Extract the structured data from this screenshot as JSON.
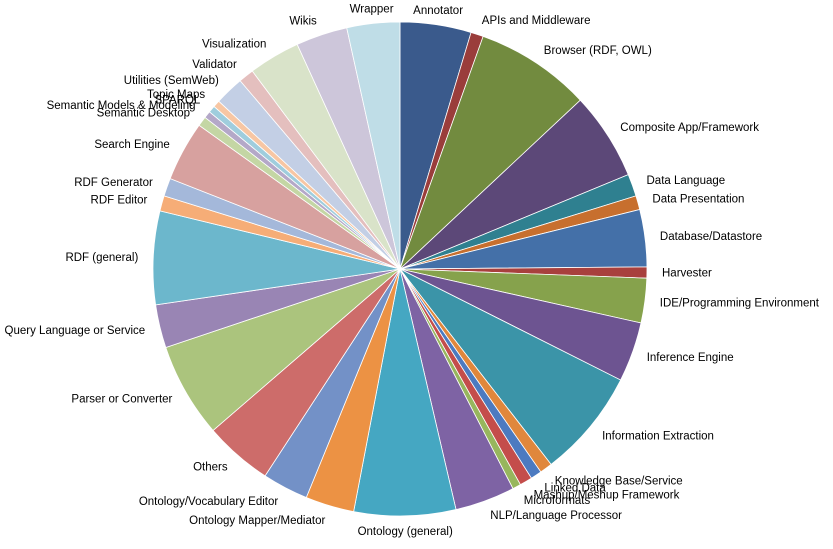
{
  "chart_data": {
    "type": "pie",
    "title": "",
    "slices": [
      {
        "label": "Annotator",
        "value": 5.1,
        "color": "#3a5a8c"
      },
      {
        "label": "APIs and Middleware",
        "value": 0.9,
        "color": "#9a3d3b"
      },
      {
        "label": "Browser (RDF, OWL)",
        "value": 8.3,
        "color": "#728b3f"
      },
      {
        "label": "Composite App/Framework",
        "value": 6.3,
        "color": "#5c4878"
      },
      {
        "label": "Data Language",
        "value": 1.6,
        "color": "#2f8090"
      },
      {
        "label": "Data Presentation",
        "value": 1.0,
        "color": "#c76f2e"
      },
      {
        "label": "Database/Datastore",
        "value": 4.1,
        "color": "#4470a8"
      },
      {
        "label": "Harvester",
        "value": 0.8,
        "color": "#a8403d"
      },
      {
        "label": "IDE/Programming Environment",
        "value": 3.2,
        "color": "#86a24c"
      },
      {
        "label": "Inference Engine",
        "value": 4.3,
        "color": "#6d5491"
      },
      {
        "label": "Information Extraction",
        "value": 7.8,
        "color": "#3b94a8"
      },
      {
        "label": "Knowledge Base/Service",
        "value": 0.9,
        "color": "#e0873c"
      },
      {
        "label": "Linked Data",
        "value": 0.8,
        "color": "#4c7ac0"
      },
      {
        "label": "Mashup/Meshup Framework",
        "value": 0.9,
        "color": "#c44d4b"
      },
      {
        "label": "Microformats",
        "value": 0.6,
        "color": "#97b65d"
      },
      {
        "label": "NLP/Language Processor",
        "value": 4.3,
        "color": "#7e63a4"
      },
      {
        "label": "Ontology (general)",
        "value": 7.3,
        "color": "#45a7c2"
      },
      {
        "label": "Ontology Mapper/Mediator",
        "value": 3.5,
        "color": "#ec9244"
      },
      {
        "label": "Ontology/Vocabulary Editor",
        "value": 3.3,
        "color": "#7391c7"
      },
      {
        "label": "Others",
        "value": 4.9,
        "color": "#cd6c6a"
      },
      {
        "label": "Parser or Converter",
        "value": 6.8,
        "color": "#abc47d"
      },
      {
        "label": "Query Language or Service",
        "value": 3.1,
        "color": "#9985b4"
      },
      {
        "label": "RDF (general)",
        "value": 6.7,
        "color": "#6cb7cc"
      },
      {
        "label": "RDF Editor",
        "value": 1.1,
        "color": "#f6ad77"
      },
      {
        "label": "RDF Generator",
        "value": 1.3,
        "color": "#a4b8da"
      },
      {
        "label": "Search Engine",
        "value": 4.3,
        "color": "#d7a19f"
      },
      {
        "label": "Semantic Desktop",
        "value": 0.7,
        "color": "#c4d6a4"
      },
      {
        "label": "Semantic Models & Modeling",
        "value": 0.5,
        "color": "#b4a8c8"
      },
      {
        "label": "SPARQL",
        "value": 0.5,
        "color": "#9fcddd"
      },
      {
        "label": "Topic Maps",
        "value": 0.5,
        "color": "#f7c6a3"
      },
      {
        "label": "Utilities (SemWeb)",
        "value": 2.1,
        "color": "#c3cfe5"
      },
      {
        "label": "Validator",
        "value": 1.1,
        "color": "#e4bfbe"
      },
      {
        "label": "Visualization",
        "value": 3.7,
        "color": "#d9e3c9"
      },
      {
        "label": "Wikis",
        "value": 3.7,
        "color": "#cdc6da"
      },
      {
        "label": "Wrapper",
        "value": 3.8,
        "color": "#bfdde7"
      }
    ],
    "legend": "none",
    "data_labels": "category names outside slices"
  }
}
